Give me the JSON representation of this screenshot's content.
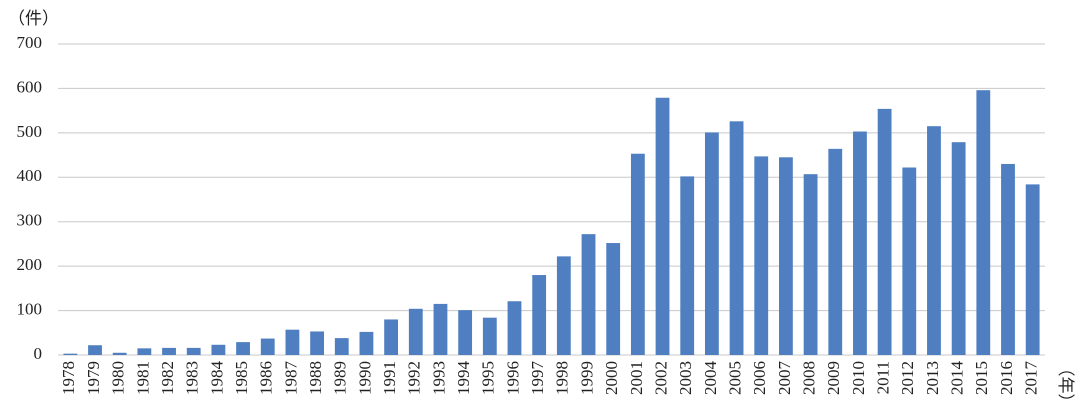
{
  "chart_data": {
    "type": "bar",
    "y_label": "（件）",
    "x_label": "（年）",
    "categories": [
      "1978",
      "1979",
      "1980",
      "1981",
      "1982",
      "1983",
      "1984",
      "1985",
      "1986",
      "1987",
      "1988",
      "1989",
      "1990",
      "1991",
      "1992",
      "1993",
      "1994",
      "1995",
      "1996",
      "1997",
      "1998",
      "1999",
      "2000",
      "2001",
      "2002",
      "2003",
      "2004",
      "2005",
      "2006",
      "2007",
      "2008",
      "2009",
      "2010",
      "2011",
      "2012",
      "2013",
      "2014",
      "2015",
      "2016",
      "2017"
    ],
    "values": [
      3,
      22,
      5,
      15,
      16,
      16,
      23,
      29,
      37,
      57,
      53,
      38,
      52,
      80,
      104,
      115,
      101,
      84,
      121,
      180,
      222,
      272,
      252,
      453,
      579,
      402,
      501,
      526,
      447,
      445,
      407,
      464,
      503,
      554,
      422,
      515,
      479,
      596,
      430,
      384
    ],
    "color": "#4f7fc0",
    "ylim": [
      0,
      700
    ],
    "yticks": [
      0,
      100,
      200,
      300,
      400,
      500,
      600,
      700
    ],
    "grid": true
  }
}
